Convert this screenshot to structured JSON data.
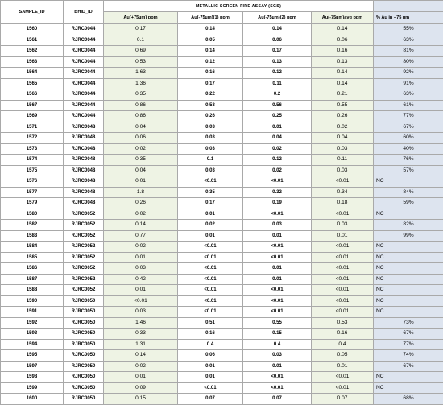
{
  "headers": {
    "sample_id": "SAMPLE_ID",
    "bhid": "BHID_ID",
    "group": "METALLIC SCREEN FIRE ASSAY (SGS)",
    "au_plus75": "Au(+75µm) ppm",
    "au_minus75_1": "Au(-75µm)(1) ppm",
    "au_minus75_2": "Au(-75µm)(2) ppm",
    "au_minus75_avg": "Au(-75µm)avg ppm",
    "pct_au": "% Au in +75 µm"
  },
  "rows": [
    {
      "id": "1560",
      "bh": "RJRC0044",
      "au": "0.17",
      "m1": "0.14",
      "m2": "0.14",
      "mt": "0.14",
      "pct": "55%"
    },
    {
      "id": "1561",
      "bh": "RJRC0044",
      "au": "0.1",
      "m1": "0.05",
      "m2": "0.06",
      "mt": "0.06",
      "pct": "63%"
    },
    {
      "id": "1562",
      "bh": "RJRC0044",
      "au": "0.69",
      "m1": "0.14",
      "m2": "0.17",
      "mt": "0.16",
      "pct": "81%"
    },
    {
      "id": "1563",
      "bh": "RJRC0044",
      "au": "0.53",
      "m1": "0.12",
      "m2": "0.13",
      "mt": "0.13",
      "pct": "80%"
    },
    {
      "id": "1564",
      "bh": "RJRC0044",
      "au": "1.63",
      "m1": "0.16",
      "m2": "0.12",
      "mt": "0.14",
      "pct": "92%"
    },
    {
      "id": "1565",
      "bh": "RJRC0044",
      "au": "1.36",
      "m1": "0.17",
      "m2": "0.11",
      "mt": "0.14",
      "pct": "91%"
    },
    {
      "id": "1566",
      "bh": "RJRC0044",
      "au": "0.35",
      "m1": "0.22",
      "m2": "0.2",
      "mt": "0.21",
      "pct": "63%"
    },
    {
      "id": "1567",
      "bh": "RJRC0044",
      "au": "0.86",
      "m1": "0.53",
      "m2": "0.56",
      "mt": "0.55",
      "pct": "61%"
    },
    {
      "id": "1569",
      "bh": "RJRC0044",
      "au": "0.86",
      "m1": "0.26",
      "m2": "0.25",
      "mt": "0.26",
      "pct": "77%"
    },
    {
      "id": "1571",
      "bh": "RJRC0048",
      "au": "0.04",
      "m1": "0.03",
      "m2": "0.01",
      "mt": "0.02",
      "pct": "67%"
    },
    {
      "id": "1572",
      "bh": "RJRC0048",
      "au": "0.06",
      "m1": "0.03",
      "m2": "0.04",
      "mt": "0.04",
      "pct": "60%"
    },
    {
      "id": "1573",
      "bh": "RJRC0048",
      "au": "0.02",
      "m1": "0.03",
      "m2": "0.02",
      "mt": "0.03",
      "pct": "40%"
    },
    {
      "id": "1574",
      "bh": "RJRC0048",
      "au": "0.35",
      "m1": "0.1",
      "m2": "0.12",
      "mt": "0.11",
      "pct": "76%"
    },
    {
      "id": "1575",
      "bh": "RJRC0048",
      "au": "0.04",
      "m1": "0.03",
      "m2": "0.02",
      "mt": "0.03",
      "pct": "57%"
    },
    {
      "id": "1576",
      "bh": "RJRC0048",
      "au": "0.01",
      "m1": "<0.01",
      "m2": "<0.01",
      "mt": "<0.01",
      "pct": "NC"
    },
    {
      "id": "1577",
      "bh": "RJRC0048",
      "au": "1.8",
      "m1": "0.35",
      "m2": "0.32",
      "mt": "0.34",
      "pct": "84%"
    },
    {
      "id": "1579",
      "bh": "RJRC0048",
      "au": "0.26",
      "m1": "0.17",
      "m2": "0.19",
      "mt": "0.18",
      "pct": "59%"
    },
    {
      "id": "1580",
      "bh": "RJRC0052",
      "au": "0.02",
      "m1": "0.01",
      "m2": "<0.01",
      "mt": "<0.01",
      "pct": "NC"
    },
    {
      "id": "1582",
      "bh": "RJRC0052",
      "au": "0.14",
      "m1": "0.02",
      "m2": "0.03",
      "mt": "0.03",
      "pct": "82%"
    },
    {
      "id": "1583",
      "bh": "RJRC0052",
      "au": "0.77",
      "m1": "0.01",
      "m2": "0.01",
      "mt": "0.01",
      "pct": "99%"
    },
    {
      "id": "1584",
      "bh": "RJRC0052",
      "au": "0.02",
      "m1": "<0.01",
      "m2": "<0.01",
      "mt": "<0.01",
      "pct": "NC"
    },
    {
      "id": "1585",
      "bh": "RJRC0052",
      "au": "0.01",
      "m1": "<0.01",
      "m2": "<0.01",
      "mt": "<0.01",
      "pct": "NC"
    },
    {
      "id": "1586",
      "bh": "RJRC0052",
      "au": "0.03",
      "m1": "<0.01",
      "m2": "0.01",
      "mt": "<0.01",
      "pct": "NC"
    },
    {
      "id": "1587",
      "bh": "RJRC0052",
      "au": "0.42",
      "m1": "<0.01",
      "m2": "0.01",
      "mt": "<0.01",
      "pct": "NC"
    },
    {
      "id": "1588",
      "bh": "RJRC0052",
      "au": "0.01",
      "m1": "<0.01",
      "m2": "<0.01",
      "mt": "<0.01",
      "pct": "NC"
    },
    {
      "id": "1590",
      "bh": "RJRC0050",
      "au": "<0.01",
      "m1": "<0.01",
      "m2": "<0.01",
      "mt": "<0.01",
      "pct": "NC"
    },
    {
      "id": "1591",
      "bh": "RJRC0050",
      "au": "0.03",
      "m1": "<0.01",
      "m2": "<0.01",
      "mt": "<0.01",
      "pct": "NC"
    },
    {
      "id": "1592",
      "bh": "RJRC0050",
      "au": "1.46",
      "m1": "0.51",
      "m2": "0.55",
      "mt": "0.53",
      "pct": "73%"
    },
    {
      "id": "1593",
      "bh": "RJRC0050",
      "au": "0.33",
      "m1": "0.16",
      "m2": "0.15",
      "mt": "0.16",
      "pct": "67%"
    },
    {
      "id": "1594",
      "bh": "RJRC0050",
      "au": "1.31",
      "m1": "0.4",
      "m2": "0.4",
      "mt": "0.4",
      "pct": "77%"
    },
    {
      "id": "1595",
      "bh": "RJRC0050",
      "au": "0.14",
      "m1": "0.06",
      "m2": "0.03",
      "mt": "0.05",
      "pct": "74%"
    },
    {
      "id": "1597",
      "bh": "RJRC0050",
      "au": "0.02",
      "m1": "0.01",
      "m2": "0.01",
      "mt": "0.01",
      "pct": "67%"
    },
    {
      "id": "1598",
      "bh": "RJRC0050",
      "au": "0.01",
      "m1": "0.01",
      "m2": "<0.01",
      "mt": "<0.01",
      "pct": "NC"
    },
    {
      "id": "1599",
      "bh": "RJRC0050",
      "au": "0.09",
      "m1": "<0.01",
      "m2": "<0.01",
      "mt": "<0.01",
      "pct": "NC"
    },
    {
      "id": "1600",
      "bh": "RJRC0050",
      "au": "0.15",
      "m1": "0.07",
      "m2": "0.07",
      "mt": "0.07",
      "pct": "68%"
    }
  ]
}
